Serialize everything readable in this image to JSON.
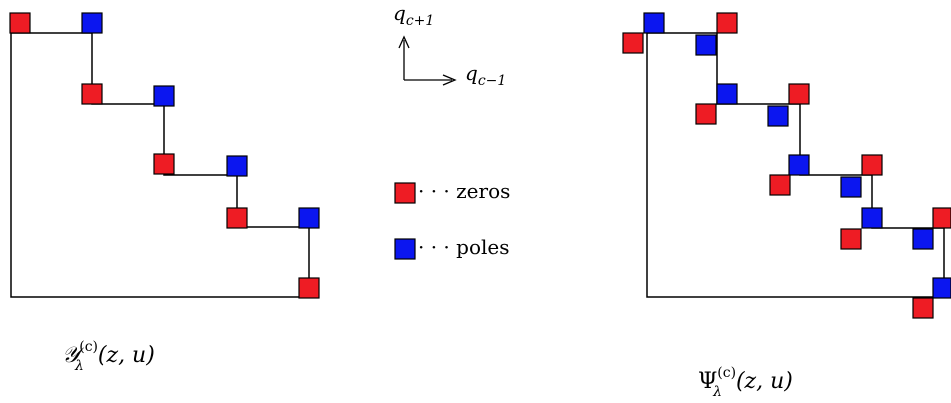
{
  "colors": {
    "zero": "#ee1c24",
    "pole": "#0b16f0",
    "line": "#000000",
    "box_stroke": "#000000"
  },
  "legend": {
    "zeros_text": "· · · zeros",
    "poles_text": "· · · poles"
  },
  "axes": {
    "up_base": "q",
    "up_sub": "c+1",
    "right_base": "q",
    "right_sub": "c−1"
  },
  "labels": {
    "left_base": "𝒴",
    "left_sub": "λ",
    "left_sup": "(c)",
    "left_args": "(z, u)",
    "right_base": "Ψ",
    "right_sub": "λ",
    "right_sup": "(c)",
    "right_args": "(z, u)"
  }
}
